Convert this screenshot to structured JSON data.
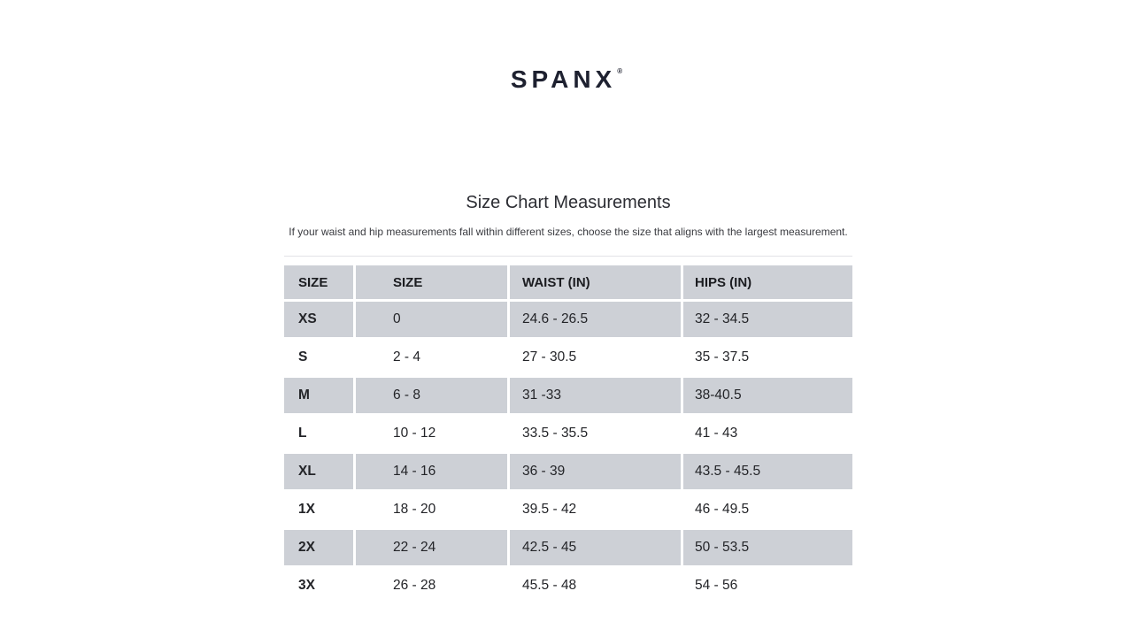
{
  "page": {
    "background": "#ffffff",
    "logo": {
      "text": "SPANX",
      "trademark": "®"
    },
    "title": "Size Chart Measurements",
    "subtitle": "If your waist and hip measurements fall within different sizes, choose the size that aligns with the largest measurement."
  },
  "table": {
    "columns": [
      "SIZE",
      "SIZE",
      "WAIST (IN)",
      "HIPS (IN)"
    ],
    "rows": [
      {
        "size": "XS",
        "size_num": "0",
        "waist": "24.6 - 26.5",
        "hips": "32 - 34.5",
        "shaded": true
      },
      {
        "size": "S",
        "size_num": "2 - 4",
        "waist": "27 - 30.5",
        "hips": "35 - 37.5",
        "shaded": false
      },
      {
        "size": "M",
        "size_num": "6 - 8",
        "waist": "31 -33",
        "hips": "38-40.5",
        "shaded": true
      },
      {
        "size": "L",
        "size_num": "10 - 12",
        "waist": "33.5 - 35.5",
        "hips": "41 - 43",
        "shaded": false
      },
      {
        "size": "XL",
        "size_num": "14 - 16",
        "waist": "36 - 39",
        "hips": "43.5 - 45.5",
        "shaded": true
      },
      {
        "size": "1X",
        "size_num": "18 - 20",
        "waist": "39.5 - 42",
        "hips": "46 - 49.5",
        "shaded": false
      },
      {
        "size": "2X",
        "size_num": "22 - 24",
        "waist": "42.5 - 45",
        "hips": "50 - 53.5",
        "shaded": true
      },
      {
        "size": "3X",
        "size_num": "26 - 28",
        "waist": "45.5 - 48",
        "hips": "54 - 56",
        "shaded": false
      }
    ],
    "colors": {
      "row_shaded": "#cdd0d6",
      "row_plain": "#ffffff",
      "header_text": "#1b1c20",
      "cell_text": "#232428",
      "logo_color": "#1e2130"
    }
  }
}
